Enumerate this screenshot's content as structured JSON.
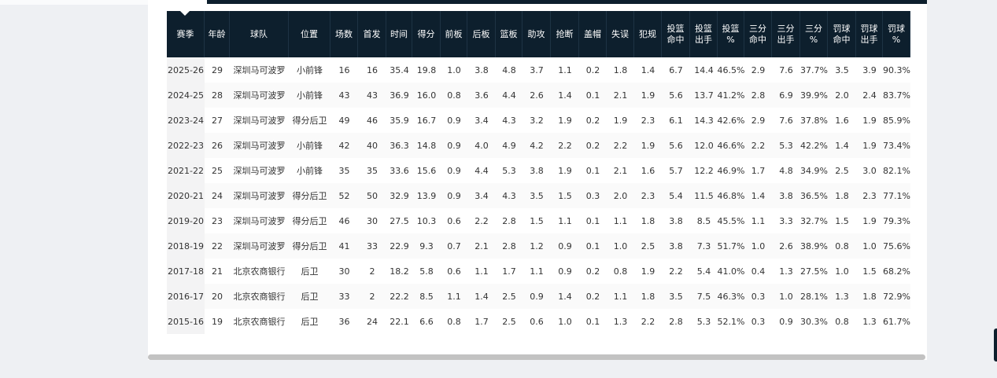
{
  "table": {
    "headers": [
      [
        "赛季"
      ],
      [
        "年龄"
      ],
      [
        "球队"
      ],
      [
        "位置"
      ],
      [
        "场数"
      ],
      [
        "首发"
      ],
      [
        "时间"
      ],
      [
        "得分"
      ],
      [
        "前板"
      ],
      [
        "后板"
      ],
      [
        "篮板"
      ],
      [
        "助攻"
      ],
      [
        "抢断"
      ],
      [
        "盖帽"
      ],
      [
        "失误"
      ],
      [
        "犯规"
      ],
      [
        "投篮",
        "命中"
      ],
      [
        "投篮",
        "出手"
      ],
      [
        "投篮",
        "%"
      ],
      [
        "三分",
        "命中"
      ],
      [
        "三分",
        "出手"
      ],
      [
        "三分",
        "%"
      ],
      [
        "罚球",
        "命中"
      ],
      [
        "罚球",
        "出手"
      ],
      [
        "罚球",
        "%"
      ]
    ],
    "rows": [
      [
        "2025-26",
        "29",
        "深圳马可波罗",
        "小前锋",
        "16",
        "16",
        "35.4",
        "19.8",
        "1.0",
        "3.8",
        "4.8",
        "3.7",
        "1.1",
        "0.2",
        "1.8",
        "1.4",
        "6.7",
        "14.4",
        "46.5%",
        "2.9",
        "7.6",
        "37.7%",
        "3.5",
        "3.9",
        "90.3%"
      ],
      [
        "2024-25",
        "28",
        "深圳马可波罗",
        "小前锋",
        "43",
        "43",
        "36.9",
        "16.0",
        "0.8",
        "3.6",
        "4.4",
        "2.6",
        "1.4",
        "0.1",
        "2.1",
        "1.9",
        "5.6",
        "13.7",
        "41.2%",
        "2.8",
        "6.9",
        "39.9%",
        "2.0",
        "2.4",
        "83.7%"
      ],
      [
        "2023-24",
        "27",
        "深圳马可波罗",
        "得分后卫",
        "49",
        "46",
        "35.9",
        "16.7",
        "0.9",
        "3.4",
        "4.3",
        "3.2",
        "1.9",
        "0.2",
        "1.9",
        "2.3",
        "6.1",
        "14.3",
        "42.6%",
        "2.9",
        "7.6",
        "37.8%",
        "1.6",
        "1.9",
        "85.9%"
      ],
      [
        "2022-23",
        "26",
        "深圳马可波罗",
        "小前锋",
        "42",
        "40",
        "36.3",
        "14.8",
        "0.9",
        "4.0",
        "4.9",
        "4.2",
        "2.2",
        "0.2",
        "2.2",
        "1.9",
        "5.6",
        "12.0",
        "46.6%",
        "2.2",
        "5.3",
        "42.2%",
        "1.4",
        "1.9",
        "73.4%"
      ],
      [
        "2021-22",
        "25",
        "深圳马可波罗",
        "小前锋",
        "35",
        "35",
        "33.6",
        "15.6",
        "0.9",
        "4.4",
        "5.3",
        "3.8",
        "1.9",
        "0.1",
        "2.1",
        "1.6",
        "5.7",
        "12.2",
        "46.9%",
        "1.7",
        "4.8",
        "34.9%",
        "2.5",
        "3.0",
        "82.1%"
      ],
      [
        "2020-21",
        "24",
        "深圳马可波罗",
        "得分后卫",
        "52",
        "50",
        "32.9",
        "13.9",
        "0.9",
        "3.4",
        "4.3",
        "3.5",
        "1.5",
        "0.3",
        "2.0",
        "2.3",
        "5.4",
        "11.5",
        "46.8%",
        "1.4",
        "3.8",
        "36.5%",
        "1.8",
        "2.3",
        "77.1%"
      ],
      [
        "2019-20",
        "23",
        "深圳马可波罗",
        "得分后卫",
        "46",
        "30",
        "27.5",
        "10.3",
        "0.6",
        "2.2",
        "2.8",
        "1.5",
        "1.1",
        "0.1",
        "1.1",
        "1.8",
        "3.8",
        "8.5",
        "45.5%",
        "1.1",
        "3.3",
        "32.7%",
        "1.5",
        "1.9",
        "79.3%"
      ],
      [
        "2018-19",
        "22",
        "深圳马可波罗",
        "得分后卫",
        "41",
        "33",
        "22.9",
        "9.3",
        "0.7",
        "2.1",
        "2.8",
        "1.2",
        "0.9",
        "0.1",
        "1.0",
        "2.5",
        "3.8",
        "7.3",
        "51.7%",
        "1.0",
        "2.6",
        "38.9%",
        "0.8",
        "1.0",
        "75.6%"
      ],
      [
        "2017-18",
        "21",
        "北京农商银行",
        "后卫",
        "30",
        "2",
        "18.2",
        "5.8",
        "0.6",
        "1.1",
        "1.7",
        "1.1",
        "0.9",
        "0.2",
        "0.8",
        "1.9",
        "2.2",
        "5.4",
        "41.0%",
        "0.4",
        "1.3",
        "27.5%",
        "1.0",
        "1.5",
        "68.2%"
      ],
      [
        "2016-17",
        "20",
        "北京农商银行",
        "后卫",
        "33",
        "2",
        "22.2",
        "8.5",
        "1.1",
        "1.4",
        "2.5",
        "0.9",
        "1.4",
        "0.2",
        "1.1",
        "1.8",
        "3.5",
        "7.5",
        "46.3%",
        "0.3",
        "1.0",
        "28.1%",
        "1.3",
        "1.8",
        "72.9%"
      ],
      [
        "2015-16",
        "19",
        "北京农商银行",
        "后卫",
        "36",
        "24",
        "22.1",
        "6.6",
        "0.8",
        "1.7",
        "2.5",
        "0.6",
        "1.0",
        "0.1",
        "1.3",
        "2.2",
        "2.8",
        "5.3",
        "52.1%",
        "0.3",
        "0.9",
        "30.3%",
        "0.8",
        "1.3",
        "61.7%"
      ]
    ]
  }
}
